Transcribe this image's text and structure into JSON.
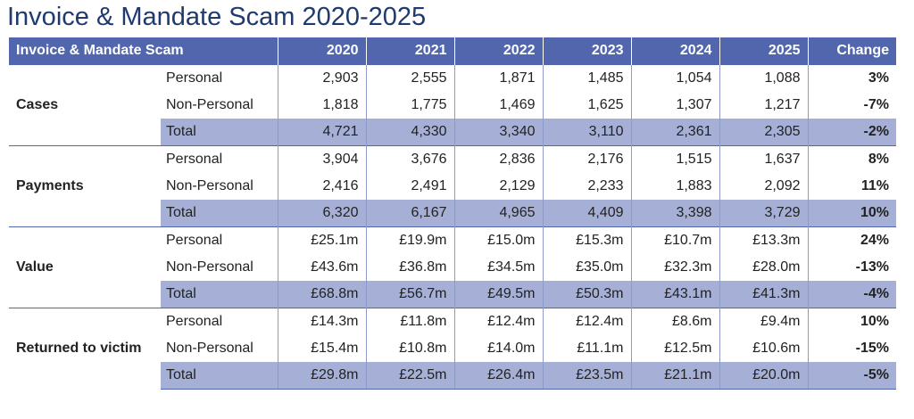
{
  "title": "Invoice & Mandate Scam 2020-2025",
  "header": {
    "label": "Invoice & Mandate Scam",
    "years": [
      "2020",
      "2021",
      "2022",
      "2023",
      "2024",
      "2025"
    ],
    "change": "Change"
  },
  "groups": [
    {
      "name": "Cases",
      "rows": [
        {
          "label": "Personal",
          "values": [
            "2,903",
            "2,555",
            "1,871",
            "1,485",
            "1,054",
            "1,088"
          ],
          "change": "3%"
        },
        {
          "label": "Non-Personal",
          "values": [
            "1,818",
            "1,775",
            "1,469",
            "1,625",
            "1,307",
            "1,217"
          ],
          "change": "-7%"
        },
        {
          "label": "Total",
          "values": [
            "4,721",
            "4,330",
            "3,340",
            "3,110",
            "2,361",
            "2,305"
          ],
          "change": "-2%"
        }
      ]
    },
    {
      "name": "Payments",
      "rows": [
        {
          "label": "Personal",
          "values": [
            "3,904",
            "3,676",
            "2,836",
            "2,176",
            "1,515",
            "1,637"
          ],
          "change": "8%"
        },
        {
          "label": "Non-Personal",
          "values": [
            "2,416",
            "2,491",
            "2,129",
            "2,233",
            "1,883",
            "2,092"
          ],
          "change": "11%"
        },
        {
          "label": "Total",
          "values": [
            "6,320",
            "6,167",
            "4,965",
            "4,409",
            "3,398",
            "3,729"
          ],
          "change": "10%"
        }
      ]
    },
    {
      "name": "Value",
      "rows": [
        {
          "label": "Personal",
          "values": [
            "£25.1m",
            "£19.9m",
            "£15.0m",
            "£15.3m",
            "£10.7m",
            "£13.3m"
          ],
          "change": "24%"
        },
        {
          "label": "Non-Personal",
          "values": [
            "£43.6m",
            "£36.8m",
            "£34.5m",
            "£35.0m",
            "£32.3m",
            "£28.0m"
          ],
          "change": "-13%"
        },
        {
          "label": "Total",
          "values": [
            "£68.8m",
            "£56.7m",
            "£49.5m",
            "£50.3m",
            "£43.1m",
            "£41.3m"
          ],
          "change": "-4%"
        }
      ]
    },
    {
      "name": "Returned to victim",
      "rows": [
        {
          "label": "Personal",
          "values": [
            "£14.3m",
            "£11.8m",
            "£12.4m",
            "£12.4m",
            "£8.6m",
            "£9.4m"
          ],
          "change": "10%"
        },
        {
          "label": "Non-Personal",
          "values": [
            "£15.4m",
            "£10.8m",
            "£14.0m",
            "£11.1m",
            "£12.5m",
            "£10.6m"
          ],
          "change": "-15%"
        },
        {
          "label": "Total",
          "values": [
            "£29.8m",
            "£22.5m",
            "£26.4m",
            "£23.5m",
            "£21.1m",
            "£20.0m"
          ],
          "change": "-5%"
        }
      ]
    }
  ]
}
